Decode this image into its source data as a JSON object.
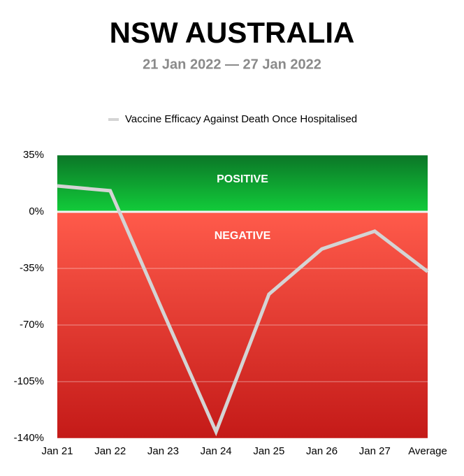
{
  "chart_data": {
    "type": "line",
    "title": "NSW AUSTRALIA",
    "subtitle": "21 Jan 2022 — 27 Jan 2022",
    "categories": [
      "Jan 21",
      "Jan 22",
      "Jan 23",
      "Jan 24",
      "Jan 25",
      "Jan 26",
      "Jan 27",
      "Average"
    ],
    "series": [
      {
        "name": "Vaccine Efficacy Against Death Once Hospitalised",
        "color": "#d4d4d4",
        "values": [
          16,
          13,
          -62,
          -136,
          -51,
          -23,
          -12,
          -37
        ]
      }
    ],
    "ylim": [
      -140,
      35
    ],
    "yticks": [
      {
        "value": -140,
        "label": "-140%"
      },
      {
        "value": -105,
        "label": "-105%"
      },
      {
        "value": -70,
        "label": "-70%"
      },
      {
        "value": -35,
        "label": "-35%"
      },
      {
        "value": 0,
        "label": "0%"
      },
      {
        "value": 35,
        "label": "35%"
      }
    ],
    "bands": [
      {
        "label": "POSITIVE",
        "range": [
          0,
          35
        ],
        "color_top": "#0b7627",
        "color_bottom": "#12cc3a"
      },
      {
        "label": "NEGATIVE",
        "range": [
          -140,
          0
        ],
        "color_top": "#ff5b4b",
        "color_bottom": "#c41a18"
      }
    ],
    "grid": true,
    "legend": "top"
  }
}
